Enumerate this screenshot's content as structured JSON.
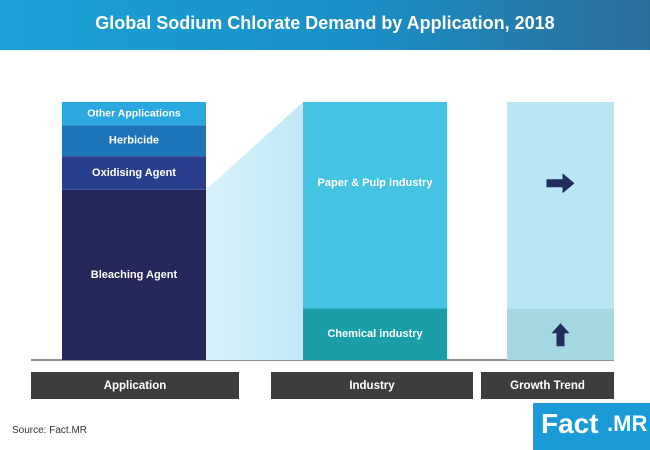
{
  "header": {
    "title": "Global Sodium Chlorate Demand by Application, 2018"
  },
  "source": "Source: Fact.MR",
  "logo": {
    "part1": "Fact",
    "part2": ".MR"
  },
  "colors": {
    "other_applications": "#2aa8df",
    "herbicide": "#1e74b9",
    "oxidising_agent": "#293e8d",
    "bleaching_agent": "#242759",
    "paper_pulp": "#44c3e2",
    "chemical": "#1a9ea8",
    "growth_top": "#b8e6f3",
    "growth_bottom": "#a4d8e1",
    "arrow": "#232a5e",
    "footer_bar": "#3d3d3d"
  },
  "chart_data": [
    {
      "type": "bar",
      "title": "Application",
      "stacked": true,
      "categories": [
        "Application"
      ],
      "series": [
        {
          "name": "Bleaching Agent",
          "values": [
            66
          ]
        },
        {
          "name": "Oxidising Agent",
          "values": [
            13
          ]
        },
        {
          "name": "Herbicide",
          "values": [
            12
          ]
        },
        {
          "name": "Other Applications",
          "values": [
            9
          ]
        }
      ]
    },
    {
      "type": "bar",
      "title": "Industry",
      "stacked": true,
      "categories": [
        "Industry"
      ],
      "series": [
        {
          "name": "Chemical industry",
          "values": [
            20
          ]
        },
        {
          "name": "Paper & Pulp industry",
          "values": [
            80
          ]
        }
      ]
    },
    {
      "type": "bar",
      "title": "Growth Trend",
      "stacked": true,
      "categories": [
        "Growth Trend"
      ],
      "series": [
        {
          "name": "Chemical industry",
          "values": [
            20
          ],
          "trend": "up"
        },
        {
          "name": "Paper & Pulp industry",
          "values": [
            80
          ],
          "trend": "flat"
        }
      ]
    }
  ]
}
